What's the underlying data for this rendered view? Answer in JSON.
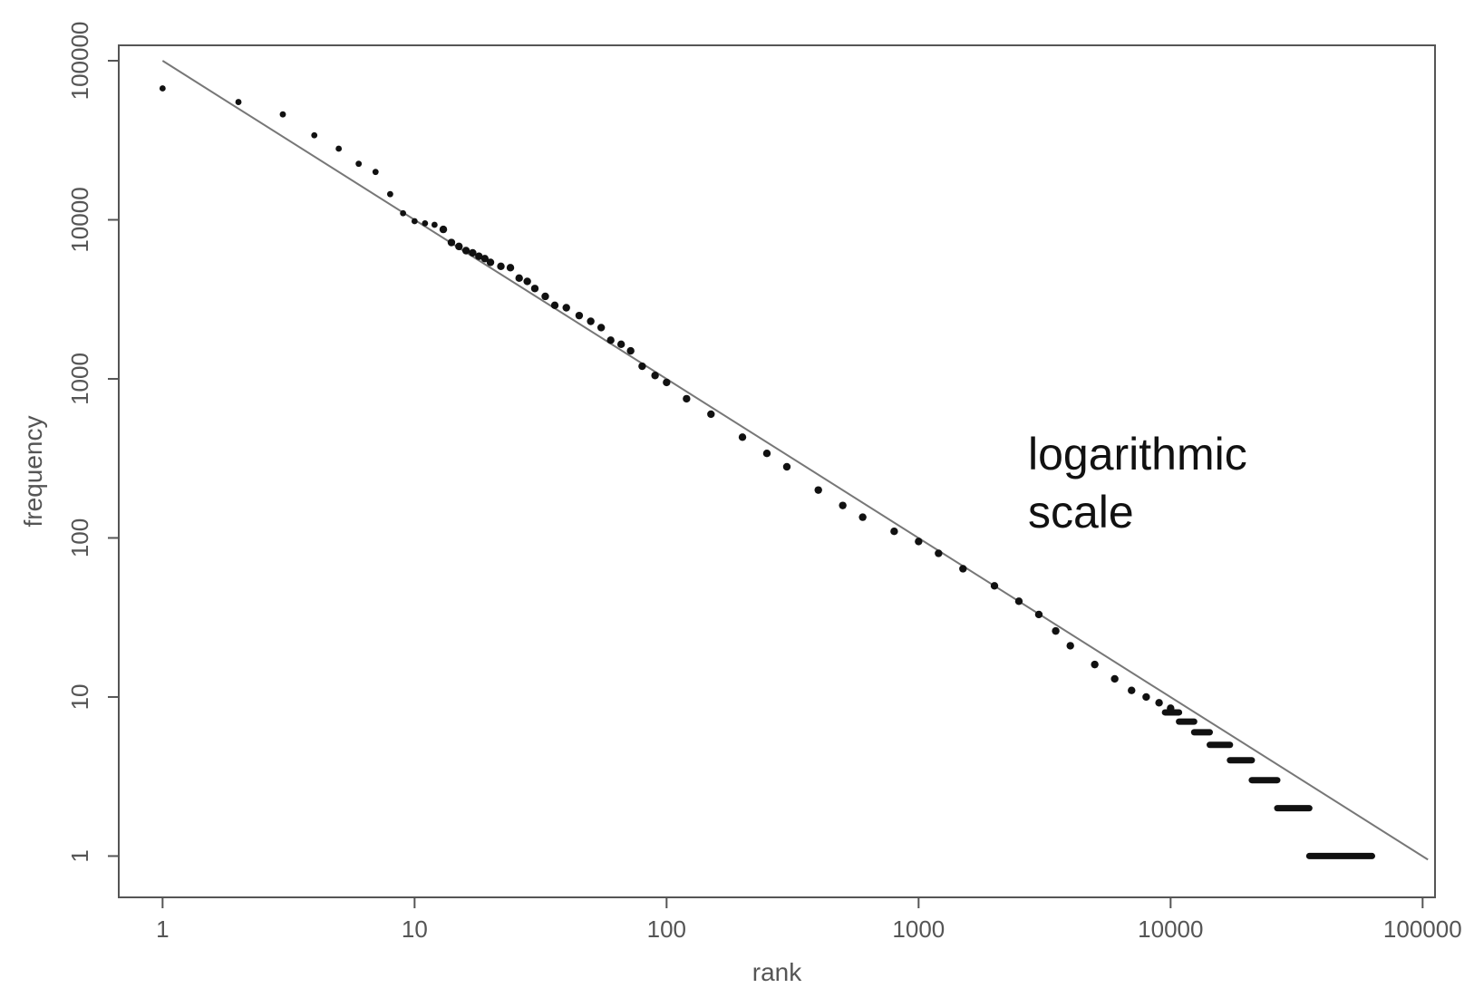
{
  "chart_data": {
    "type": "scatter",
    "title": "",
    "xlabel": "rank",
    "ylabel": "frequency",
    "x_scale": "log",
    "y_scale": "log",
    "xlim": [
      0.67,
      112000
    ],
    "ylim": [
      0.55,
      125000
    ],
    "x_ticks": [
      1,
      10,
      100,
      1000,
      10000,
      100000
    ],
    "x_tick_labels": [
      "1",
      "10",
      "100",
      "1000",
      "10000",
      "100000"
    ],
    "y_ticks": [
      1,
      10,
      100,
      1000,
      10000,
      100000
    ],
    "y_tick_labels": [
      "1",
      "10",
      "100",
      "1000",
      "10000",
      "100000"
    ],
    "annotation": [
      "logarithmic",
      "scale"
    ],
    "grid": false,
    "legend": "none",
    "reference_line": {
      "description": "power law fit",
      "x": [
        1,
        105000
      ],
      "y": [
        100000,
        0.95
      ]
    },
    "series": [
      {
        "x": [
          1,
          2,
          3,
          4,
          5,
          6,
          7,
          8,
          9,
          10,
          11,
          12,
          13,
          14,
          15,
          16,
          17,
          18,
          19,
          20,
          22,
          24,
          26,
          28,
          30,
          33,
          36,
          40,
          45,
          50,
          55,
          60,
          66,
          72,
          80,
          90,
          100,
          120,
          150,
          200,
          250,
          300,
          400,
          500,
          600,
          800,
          1000,
          1200,
          1500,
          2000,
          2500,
          3000,
          3500,
          4000,
          5000,
          6000,
          7000,
          8000,
          9000,
          10000
        ],
        "y": [
          67000,
          55000,
          46000,
          34000,
          28000,
          22500,
          20000,
          14500,
          11000,
          9800,
          9500,
          9300,
          8700,
          7200,
          6800,
          6400,
          6200,
          5900,
          5700,
          5400,
          5100,
          5000,
          4300,
          4100,
          3700,
          3300,
          2900,
          2800,
          2500,
          2300,
          2100,
          1750,
          1650,
          1500,
          1200,
          1050,
          950,
          750,
          600,
          430,
          340,
          280,
          200,
          160,
          135,
          110,
          95,
          80,
          64,
          50,
          40,
          33,
          26,
          21,
          16,
          13,
          11,
          10,
          9.2,
          8.5
        ]
      }
    ],
    "step_bands": [
      {
        "y": 8,
        "x_start": 9500,
        "x_end": 10800
      },
      {
        "y": 7,
        "x_start": 10800,
        "x_end": 12400
      },
      {
        "y": 6,
        "x_start": 12400,
        "x_end": 14300
      },
      {
        "y": 5,
        "x_start": 14300,
        "x_end": 17200
      },
      {
        "y": 4,
        "x_start": 17200,
        "x_end": 21000
      },
      {
        "y": 3,
        "x_start": 21000,
        "x_end": 26500
      },
      {
        "y": 2,
        "x_start": 26500,
        "x_end": 35500
      },
      {
        "y": 1,
        "x_start": 35500,
        "x_end": 63000
      }
    ]
  }
}
